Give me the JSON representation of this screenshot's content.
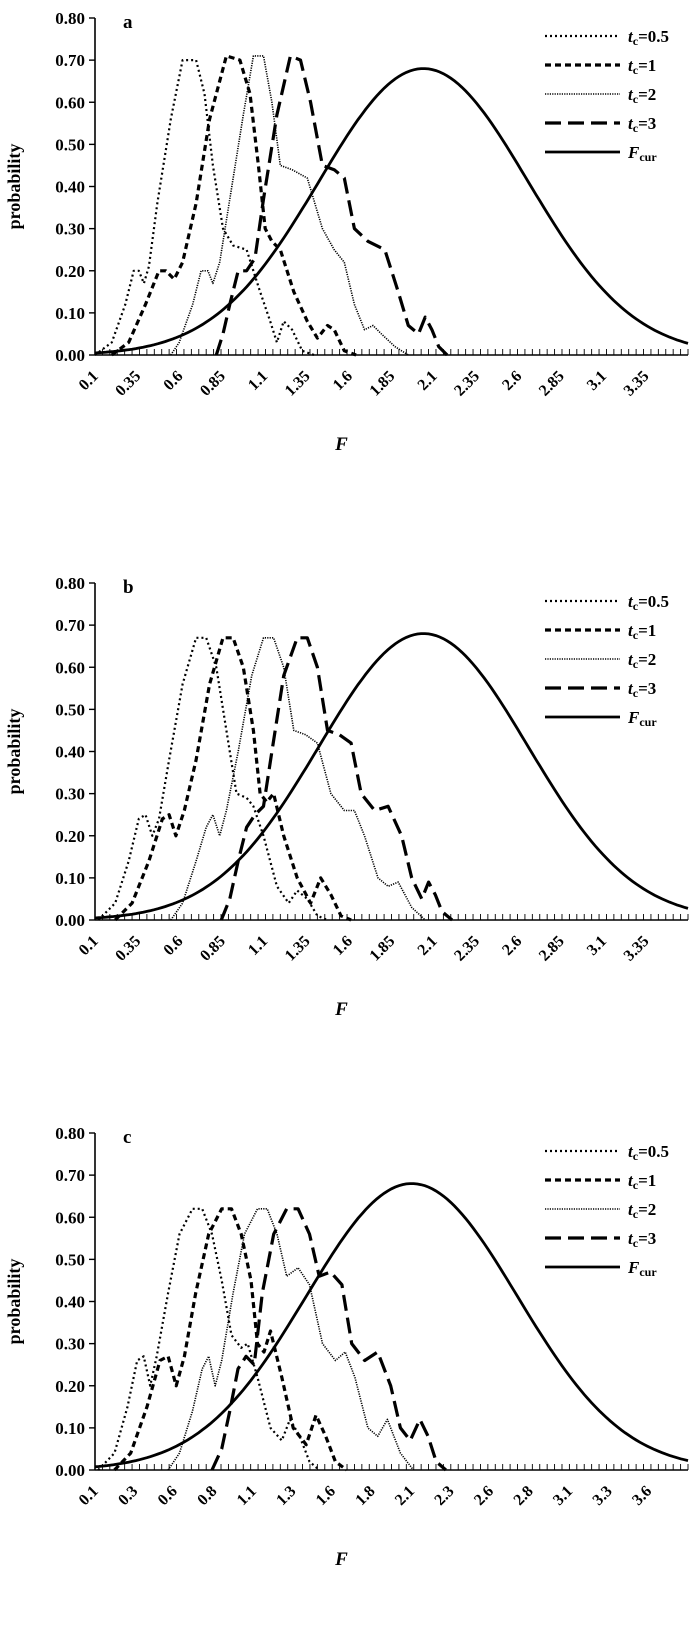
{
  "chart_data": [
    {
      "type": "line",
      "panel_label": "a",
      "ylabel": "probability",
      "xlabel": "F",
      "ylim": [
        0,
        0.8
      ],
      "yticks": [
        "0.00",
        "0.10",
        "0.20",
        "0.30",
        "0.40",
        "0.50",
        "0.60",
        "0.70",
        "0.80"
      ],
      "x_tick_labels": [
        "0.1",
        "0.35",
        "0.6",
        "0.85",
        "1.1",
        "1.35",
        "1.6",
        "1.85",
        "2.1",
        "2.35",
        "2.6",
        "2.85",
        "3.1",
        "3.35"
      ],
      "x_axis_max": 3.62,
      "grid": false,
      "legend_position": "top-right",
      "legend": [
        {
          "t": "t",
          "sub": "c",
          "rest": "=0.5",
          "dash": "dot"
        },
        {
          "t": "t",
          "sub": "c",
          "rest": "=1",
          "dash": "short"
        },
        {
          "t": "t",
          "sub": "c",
          "rest": "=2",
          "dash": "fine"
        },
        {
          "t": "t",
          "sub": "c",
          "rest": "=3",
          "dash": "long"
        },
        {
          "t": "F",
          "sub": "cur",
          "rest": "",
          "dash": "solid"
        }
      ],
      "series": [
        {
          "dash": "dot",
          "x": [
            0.1,
            0.2,
            0.28,
            0.33,
            0.36,
            0.39,
            0.42,
            0.47,
            0.55,
            0.62,
            0.7,
            0.75,
            0.8,
            0.86,
            0.92,
            1.0,
            1.08,
            1.14,
            1.18,
            1.22,
            1.27,
            1.33,
            1.4
          ],
          "y": [
            0,
            0.03,
            0.12,
            0.2,
            0.2,
            0.17,
            0.21,
            0.36,
            0.56,
            0.7,
            0.7,
            0.62,
            0.45,
            0.3,
            0.26,
            0.25,
            0.15,
            0.08,
            0.03,
            0.08,
            0.06,
            0.01,
            0
          ]
        },
        {
          "dash": "short",
          "x": [
            0.2,
            0.3,
            0.4,
            0.48,
            0.52,
            0.57,
            0.62,
            0.7,
            0.78,
            0.88,
            0.96,
            1.02,
            1.07,
            1.11,
            1.15,
            1.2,
            1.28,
            1.36,
            1.42,
            1.48,
            1.52,
            1.58,
            1.65
          ],
          "y": [
            0,
            0.03,
            0.12,
            0.2,
            0.2,
            0.18,
            0.22,
            0.36,
            0.56,
            0.71,
            0.7,
            0.62,
            0.45,
            0.3,
            0.27,
            0.25,
            0.15,
            0.08,
            0.04,
            0.07,
            0.06,
            0.01,
            0
          ]
        },
        {
          "dash": "fine",
          "x": [
            0.55,
            0.6,
            0.68,
            0.73,
            0.77,
            0.8,
            0.84,
            0.9,
            0.98,
            1.04,
            1.1,
            1.15,
            1.2,
            1.27,
            1.36,
            1.45,
            1.52,
            1.58,
            1.64,
            1.7,
            1.75,
            1.8,
            1.88,
            1.96
          ],
          "y": [
            0,
            0.03,
            0.12,
            0.2,
            0.2,
            0.17,
            0.22,
            0.37,
            0.57,
            0.71,
            0.71,
            0.6,
            0.45,
            0.44,
            0.42,
            0.3,
            0.25,
            0.22,
            0.12,
            0.06,
            0.07,
            0.05,
            0.02,
            0
          ]
        },
        {
          "dash": "long",
          "x": [
            0.82,
            0.86,
            0.9,
            0.95,
            1.0,
            1.05,
            1.1,
            1.18,
            1.26,
            1.32,
            1.38,
            1.45,
            1.52,
            1.58,
            1.64,
            1.72,
            1.82,
            1.9,
            1.96,
            2.02,
            2.06,
            2.1,
            2.14,
            2.19
          ],
          "y": [
            0,
            0.05,
            0.12,
            0.2,
            0.2,
            0.23,
            0.37,
            0.57,
            0.71,
            0.7,
            0.6,
            0.45,
            0.44,
            0.42,
            0.3,
            0.27,
            0.25,
            0.15,
            0.07,
            0.05,
            0.09,
            0.06,
            0.02,
            0
          ]
        }
      ],
      "cur_curve": {
        "peak": 0.68,
        "mu": 2.05,
        "sigma": 0.62,
        "x_start": 0.1,
        "x_end": 3.62
      }
    },
    {
      "type": "line",
      "panel_label": "b",
      "ylabel": "probability",
      "xlabel": "F",
      "ylim": [
        0,
        0.8
      ],
      "yticks": [
        "0.00",
        "0.10",
        "0.20",
        "0.30",
        "0.40",
        "0.50",
        "0.60",
        "0.70",
        "0.80"
      ],
      "x_tick_labels": [
        "0.1",
        "0.35",
        "0.6",
        "0.85",
        "1.1",
        "1.35",
        "1.6",
        "1.85",
        "2.1",
        "2.35",
        "2.6",
        "2.85",
        "3.1",
        "3.35"
      ],
      "x_axis_max": 3.62,
      "grid": false,
      "legend_position": "top-right",
      "legend": [
        {
          "t": "t",
          "sub": "c",
          "rest": "=0.5",
          "dash": "dot"
        },
        {
          "t": "t",
          "sub": "c",
          "rest": "=1",
          "dash": "short"
        },
        {
          "t": "t",
          "sub": "c",
          "rest": "=2",
          "dash": "fine"
        },
        {
          "t": "t",
          "sub": "c",
          "rest": "=3",
          "dash": "long"
        },
        {
          "t": "F",
          "sub": "cur",
          "rest": "",
          "dash": "solid"
        }
      ],
      "series": [
        {
          "dash": "dot",
          "x": [
            0.12,
            0.22,
            0.3,
            0.36,
            0.4,
            0.44,
            0.48,
            0.54,
            0.62,
            0.7,
            0.76,
            0.82,
            0.88,
            0.94,
            1.0,
            1.04,
            1.1,
            1.18,
            1.25,
            1.3,
            1.36,
            1.42,
            1.48
          ],
          "y": [
            0,
            0.04,
            0.14,
            0.24,
            0.25,
            0.2,
            0.24,
            0.38,
            0.56,
            0.67,
            0.67,
            0.6,
            0.45,
            0.3,
            0.29,
            0.27,
            0.2,
            0.08,
            0.04,
            0.07,
            0.05,
            0.01,
            0
          ]
        },
        {
          "dash": "short",
          "x": [
            0.22,
            0.32,
            0.42,
            0.5,
            0.54,
            0.58,
            0.63,
            0.7,
            0.78,
            0.86,
            0.92,
            0.98,
            1.04,
            1.08,
            1.12,
            1.16,
            1.22,
            1.3,
            1.38,
            1.44,
            1.5,
            1.56,
            1.62
          ],
          "y": [
            0,
            0.04,
            0.14,
            0.24,
            0.25,
            0.2,
            0.26,
            0.38,
            0.56,
            0.67,
            0.67,
            0.6,
            0.45,
            0.3,
            0.28,
            0.3,
            0.2,
            0.1,
            0.04,
            0.1,
            0.06,
            0.01,
            0
          ]
        },
        {
          "dash": "fine",
          "x": [
            0.55,
            0.62,
            0.7,
            0.76,
            0.8,
            0.84,
            0.88,
            0.95,
            1.03,
            1.1,
            1.16,
            1.22,
            1.28,
            1.35,
            1.42,
            1.5,
            1.58,
            1.64,
            1.7,
            1.78,
            1.84,
            1.9,
            1.98,
            2.06
          ],
          "y": [
            0,
            0.04,
            0.14,
            0.22,
            0.25,
            0.2,
            0.26,
            0.4,
            0.58,
            0.67,
            0.67,
            0.6,
            0.45,
            0.44,
            0.42,
            0.3,
            0.26,
            0.26,
            0.2,
            0.1,
            0.08,
            0.09,
            0.03,
            0
          ]
        },
        {
          "dash": "long",
          "x": [
            0.85,
            0.9,
            0.95,
            1.0,
            1.05,
            1.1,
            1.15,
            1.22,
            1.3,
            1.36,
            1.42,
            1.48,
            1.55,
            1.62,
            1.68,
            1.76,
            1.84,
            1.92,
            1.98,
            2.04,
            2.08,
            2.12,
            2.16,
            2.22
          ],
          "y": [
            0,
            0.05,
            0.14,
            0.22,
            0.25,
            0.27,
            0.4,
            0.58,
            0.67,
            0.67,
            0.6,
            0.45,
            0.44,
            0.42,
            0.3,
            0.26,
            0.27,
            0.2,
            0.1,
            0.05,
            0.09,
            0.06,
            0.02,
            0
          ]
        }
      ],
      "cur_curve": {
        "peak": 0.68,
        "mu": 2.05,
        "sigma": 0.62,
        "x_start": 0.1,
        "x_end": 3.62
      }
    },
    {
      "type": "line",
      "panel_label": "c",
      "ylabel": "probability",
      "xlabel": "F",
      "ylim": [
        0,
        0.8
      ],
      "yticks": [
        "0.00",
        "0.10",
        "0.20",
        "0.30",
        "0.40",
        "0.50",
        "0.60",
        "0.70",
        "0.80"
      ],
      "x_tick_labels": [
        "0.1",
        "0.3",
        "0.6",
        "0.8",
        "1.1",
        "1.3",
        "1.6",
        "1.8",
        "2.1",
        "2.3",
        "2.6",
        "2.8",
        "3.1",
        "3.3",
        "3.6"
      ],
      "x_axis_max": 3.75,
      "grid": false,
      "legend_position": "top-right",
      "legend": [
        {
          "t": "t",
          "sub": "c",
          "rest": "=0.5",
          "dash": "dot"
        },
        {
          "t": "t",
          "sub": "c",
          "rest": "=1",
          "dash": "short"
        },
        {
          "t": "t",
          "sub": "c",
          "rest": "=2",
          "dash": "fine"
        },
        {
          "t": "t",
          "sub": "c",
          "rest": "=3",
          "dash": "long"
        },
        {
          "t": "F",
          "sub": "cur",
          "rest": "",
          "dash": "solid"
        }
      ],
      "series": [
        {
          "dash": "dot",
          "x": [
            0.12,
            0.22,
            0.3,
            0.36,
            0.4,
            0.44,
            0.48,
            0.55,
            0.62,
            0.7,
            0.76,
            0.82,
            0.88,
            0.94,
            1.0,
            1.04,
            1.1,
            1.18,
            1.25,
            1.3,
            1.36,
            1.42,
            1.48
          ],
          "y": [
            0,
            0.04,
            0.15,
            0.26,
            0.27,
            0.2,
            0.27,
            0.42,
            0.56,
            0.62,
            0.62,
            0.56,
            0.45,
            0.32,
            0.29,
            0.3,
            0.22,
            0.1,
            0.07,
            0.12,
            0.08,
            0.02,
            0
          ]
        },
        {
          "dash": "short",
          "x": [
            0.22,
            0.32,
            0.42,
            0.5,
            0.55,
            0.6,
            0.65,
            0.72,
            0.8,
            0.88,
            0.94,
            1.0,
            1.06,
            1.1,
            1.14,
            1.18,
            1.25,
            1.32,
            1.4,
            1.46,
            1.52,
            1.58,
            1.65
          ],
          "y": [
            0,
            0.04,
            0.15,
            0.26,
            0.27,
            0.2,
            0.27,
            0.42,
            0.56,
            0.62,
            0.62,
            0.56,
            0.45,
            0.3,
            0.28,
            0.33,
            0.22,
            0.1,
            0.06,
            0.13,
            0.08,
            0.02,
            0
          ]
        },
        {
          "dash": "fine",
          "x": [
            0.55,
            0.62,
            0.7,
            0.76,
            0.8,
            0.84,
            0.88,
            0.95,
            1.02,
            1.1,
            1.16,
            1.22,
            1.28,
            1.35,
            1.42,
            1.5,
            1.58,
            1.64,
            1.7,
            1.78,
            1.84,
            1.9,
            1.98,
            2.06
          ],
          "y": [
            0,
            0.04,
            0.14,
            0.24,
            0.27,
            0.2,
            0.26,
            0.42,
            0.56,
            0.62,
            0.62,
            0.56,
            0.46,
            0.48,
            0.44,
            0.3,
            0.26,
            0.28,
            0.22,
            0.1,
            0.08,
            0.12,
            0.04,
            0
          ]
        },
        {
          "dash": "long",
          "x": [
            0.82,
            0.88,
            0.93,
            0.98,
            1.03,
            1.08,
            1.13,
            1.2,
            1.28,
            1.35,
            1.42,
            1.48,
            1.55,
            1.62,
            1.68,
            1.76,
            1.84,
            1.92,
            1.98,
            2.04,
            2.1,
            2.15,
            2.2,
            2.26
          ],
          "y": [
            0,
            0.05,
            0.14,
            0.24,
            0.27,
            0.25,
            0.42,
            0.56,
            0.62,
            0.62,
            0.56,
            0.46,
            0.47,
            0.44,
            0.3,
            0.26,
            0.28,
            0.2,
            0.1,
            0.07,
            0.12,
            0.08,
            0.02,
            0
          ]
        }
      ],
      "cur_curve": {
        "peak": 0.68,
        "mu": 2.05,
        "sigma": 0.65,
        "x_start": 0.1,
        "x_end": 3.75
      }
    }
  ]
}
